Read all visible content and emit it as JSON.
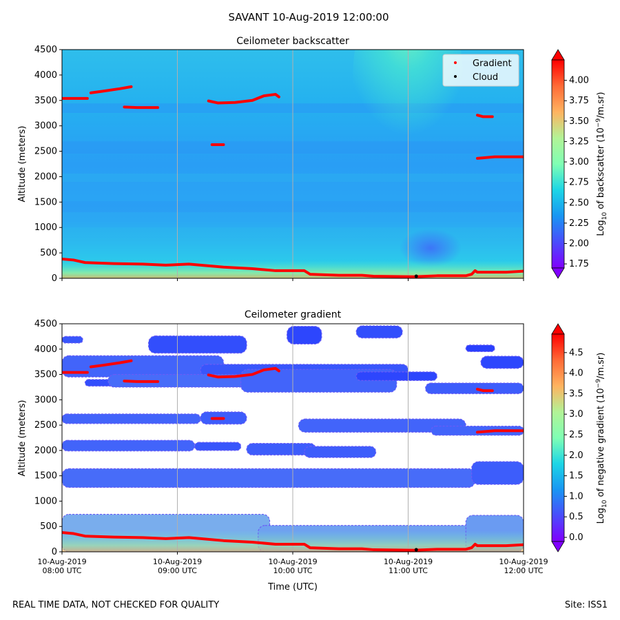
{
  "figure": {
    "suptitle": "SAVANT 10-Aug-2019 12:00:00",
    "footer_left": "REAL TIME DATA, NOT CHECKED FOR QUALITY",
    "footer_right": "Site: ISS1"
  },
  "chart_data": [
    {
      "type": "heatmap",
      "title": "Ceilometer backscatter",
      "xlabel": "",
      "ylabel": "Altitude (meters)",
      "ylim": [
        0,
        4500
      ],
      "yticks": [
        0,
        500,
        1000,
        1500,
        2000,
        2500,
        3000,
        3500,
        4000,
        4500
      ],
      "xlim_hours": [
        8,
        12
      ],
      "x_tick_hours": [
        8,
        9,
        10,
        11,
        12
      ],
      "x_tick_labels": [],
      "grid": "vertical lines at each hour",
      "legend": {
        "position": "top-right",
        "entries": [
          {
            "label": "Gradient",
            "color": "#ff0000"
          },
          {
            "label": "Cloud",
            "color": "#000000"
          }
        ]
      },
      "colorbar": {
        "label_main": "Log",
        "label_sub": "10",
        "label_mid": " of backscatter (10",
        "label_sup": "−9",
        "label_end": "/m.sr)",
        "ticks": [
          "1.75",
          "2.00",
          "2.25",
          "2.50",
          "2.75",
          "3.00",
          "3.25",
          "3.50",
          "3.75",
          "4.00"
        ],
        "tick_values": [
          1.75,
          2.0,
          2.25,
          2.5,
          2.75,
          3.0,
          3.25,
          3.5,
          3.75,
          4.0
        ],
        "range": [
          1.7,
          4.25
        ]
      }
    },
    {
      "type": "heatmap",
      "title": "Ceilometer gradient",
      "xlabel": "Time (UTC)",
      "ylabel": "Altitude (meters)",
      "ylim": [
        0,
        4500
      ],
      "yticks": [
        0,
        500,
        1000,
        1500,
        2000,
        2500,
        3000,
        3500,
        4000,
        4500
      ],
      "xlim_hours": [
        8,
        12
      ],
      "x_tick_hours": [
        8,
        9,
        10,
        11,
        12
      ],
      "x_tick_labels": [
        [
          "10-Aug-2019",
          "08:00 UTC"
        ],
        [
          "10-Aug-2019",
          "09:00 UTC"
        ],
        [
          "10-Aug-2019",
          "10:00 UTC"
        ],
        [
          "10-Aug-2019",
          "11:00 UTC"
        ],
        [
          "10-Aug-2019",
          "12:00 UTC"
        ]
      ],
      "grid": "vertical lines at each hour",
      "colorbar": {
        "label_main": "Log",
        "label_sub": "10",
        "label_mid": " of negative gradient (10",
        "label_sup": "−9",
        "label_end": "/m.sr)",
        "ticks": [
          "0.0",
          "0.5",
          "1.0",
          "1.5",
          "2.0",
          "2.5",
          "3.0",
          "3.5",
          "4.0",
          "4.5"
        ],
        "tick_values": [
          0.0,
          0.5,
          1.0,
          1.5,
          2.0,
          2.5,
          3.0,
          3.5,
          4.0,
          4.5
        ],
        "range": [
          -0.1,
          4.95
        ]
      },
      "gradient_bands": [
        {
          "start": 8.0,
          "end": 8.18,
          "bottom": 4120,
          "top": 4250,
          "level": 0.45
        },
        {
          "start": 8.75,
          "end": 9.6,
          "bottom": 3920,
          "top": 4260,
          "level": 0.4
        },
        {
          "start": 9.95,
          "end": 10.25,
          "bottom": 4100,
          "top": 4450,
          "level": 0.35
        },
        {
          "start": 10.55,
          "end": 10.95,
          "bottom": 4220,
          "top": 4460,
          "level": 0.4
        },
        {
          "start": 11.5,
          "end": 11.75,
          "bottom": 3950,
          "top": 4080,
          "level": 0.3
        },
        {
          "start": 11.63,
          "end": 12.0,
          "bottom": 3620,
          "top": 3860,
          "level": 0.35
        },
        {
          "start": 8.0,
          "end": 9.4,
          "bottom": 3450,
          "top": 3870,
          "level": 0.55
        },
        {
          "start": 9.2,
          "end": 11.0,
          "bottom": 3470,
          "top": 3700,
          "level": 0.45
        },
        {
          "start": 8.2,
          "end": 8.55,
          "bottom": 3270,
          "top": 3400,
          "level": 0.4
        },
        {
          "start": 8.4,
          "end": 9.6,
          "bottom": 3250,
          "top": 3500,
          "level": 0.6
        },
        {
          "start": 9.55,
          "end": 10.9,
          "bottom": 3150,
          "top": 3600,
          "level": 0.55
        },
        {
          "start": 10.55,
          "end": 11.25,
          "bottom": 3380,
          "top": 3550,
          "level": 0.35
        },
        {
          "start": 11.15,
          "end": 12.0,
          "bottom": 3120,
          "top": 3330,
          "level": 0.5
        },
        {
          "start": 8.0,
          "end": 9.2,
          "bottom": 2530,
          "top": 2720,
          "level": 0.55
        },
        {
          "start": 9.2,
          "end": 9.6,
          "bottom": 2520,
          "top": 2760,
          "level": 0.5
        },
        {
          "start": 10.05,
          "end": 11.5,
          "bottom": 2360,
          "top": 2620,
          "level": 0.55
        },
        {
          "start": 11.2,
          "end": 12.0,
          "bottom": 2300,
          "top": 2480,
          "level": 0.55
        },
        {
          "start": 8.0,
          "end": 9.15,
          "bottom": 1990,
          "top": 2200,
          "level": 0.55
        },
        {
          "start": 9.15,
          "end": 9.55,
          "bottom": 2000,
          "top": 2160,
          "level": 0.45
        },
        {
          "start": 9.6,
          "end": 10.2,
          "bottom": 1910,
          "top": 2140,
          "level": 0.5
        },
        {
          "start": 10.1,
          "end": 10.72,
          "bottom": 1860,
          "top": 2080,
          "level": 0.5
        },
        {
          "start": 8.0,
          "end": 11.58,
          "bottom": 1270,
          "top": 1640,
          "level": 0.6
        },
        {
          "start": 11.55,
          "end": 12.0,
          "bottom": 1330,
          "top": 1780,
          "level": 0.5
        },
        {
          "start": 8.0,
          "end": 9.8,
          "bottom": 0,
          "top": 740,
          "level": 1.1
        },
        {
          "start": 9.7,
          "end": 11.55,
          "bottom": 0,
          "top": 520,
          "level": 1.0
        },
        {
          "start": 11.5,
          "end": 12.0,
          "bottom": 0,
          "top": 720,
          "level": 0.95
        }
      ]
    }
  ],
  "overlays": {
    "gradient_color": "#ff0000",
    "cloud_color": "#000000",
    "gradient_segments": [
      [
        [
          8.0,
          3540
        ],
        [
          8.22,
          3540
        ]
      ],
      [
        [
          8.25,
          3650
        ],
        [
          8.35,
          3680
        ],
        [
          8.5,
          3730
        ],
        [
          8.6,
          3770
        ]
      ],
      [
        [
          8.54,
          3370
        ],
        [
          8.65,
          3360
        ],
        [
          8.83,
          3360
        ]
      ],
      [
        [
          9.27,
          3490
        ],
        [
          9.35,
          3450
        ],
        [
          9.5,
          3460
        ],
        [
          9.65,
          3500
        ],
        [
          9.75,
          3590
        ],
        [
          9.85,
          3620
        ],
        [
          9.88,
          3570
        ]
      ],
      [
        [
          9.3,
          2630
        ],
        [
          9.4,
          2630
        ]
      ],
      [
        [
          11.6,
          3210
        ],
        [
          11.65,
          3180
        ],
        [
          11.73,
          3180
        ]
      ],
      [
        [
          11.6,
          2360
        ],
        [
          11.75,
          2390
        ],
        [
          12.0,
          2390
        ]
      ],
      [
        [
          8.0,
          380
        ],
        [
          8.1,
          360
        ],
        [
          8.2,
          310
        ],
        [
          8.45,
          290
        ],
        [
          8.7,
          280
        ],
        [
          8.9,
          260
        ],
        [
          9.1,
          280
        ],
        [
          9.4,
          220
        ],
        [
          9.65,
          190
        ],
        [
          9.85,
          150
        ],
        [
          10.1,
          150
        ],
        [
          10.15,
          80
        ],
        [
          10.4,
          60
        ],
        [
          10.6,
          60
        ],
        [
          10.7,
          40
        ],
        [
          11.05,
          30
        ],
        [
          11.25,
          50
        ],
        [
          11.5,
          50
        ],
        [
          11.55,
          80
        ],
        [
          11.58,
          150
        ],
        [
          11.6,
          120
        ],
        [
          11.85,
          120
        ],
        [
          12.0,
          140
        ]
      ]
    ],
    "cloud_points": [
      [
        11.07,
        40
      ]
    ]
  }
}
